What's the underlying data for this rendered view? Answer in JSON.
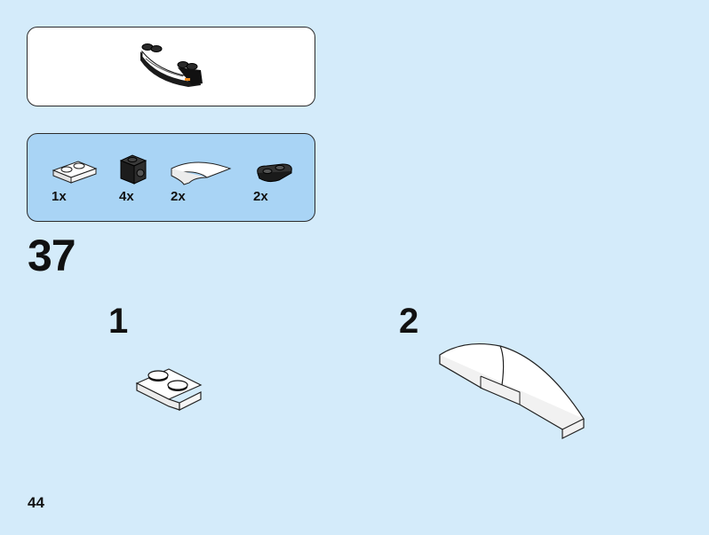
{
  "submodel": {
    "icon": "curved-brick-assembly"
  },
  "parts": [
    {
      "qty": "1x",
      "icon": "white-plate-1x2"
    },
    {
      "qty": "4x",
      "icon": "black-brick-1x1-with-stud"
    },
    {
      "qty": "2x",
      "icon": "white-curved-slope"
    },
    {
      "qty": "2x",
      "icon": "black-plate-round-1x2"
    }
  ],
  "step": {
    "number": "37"
  },
  "substeps": [
    {
      "number": "1",
      "icon": "white-plate-1x2"
    },
    {
      "number": "2",
      "icon": "white-curved-slope-pair"
    }
  ],
  "page": {
    "number": "44"
  },
  "colors": {
    "background": "#d4ebfa",
    "parts_panel": "#a9d4f5",
    "submodel_panel": "#ffffff"
  }
}
